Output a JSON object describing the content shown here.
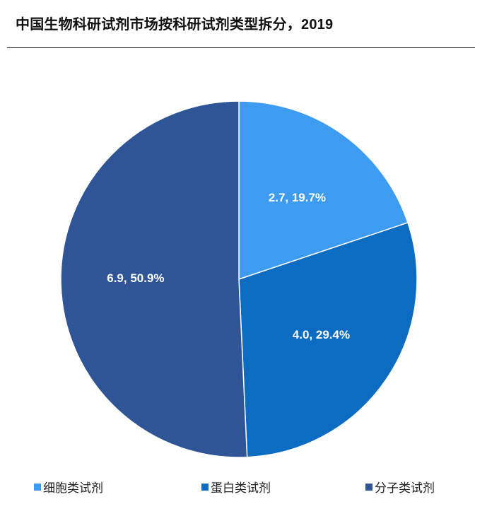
{
  "title": "中国生物科研试剂市场按科研试剂类型拆分，2019",
  "chart_data": {
    "type": "pie",
    "labels": [
      "细胞类试剂",
      "蛋白类试剂",
      "分子类试剂"
    ],
    "values": [
      2.7,
      4.0,
      6.9
    ],
    "percents": [
      "19.7%",
      "29.4%",
      "50.9%"
    ],
    "data_labels": [
      "2.7, 19.7%",
      "4.0, 29.4%",
      "6.9, 50.9%"
    ],
    "colors": [
      "#3d9bf0",
      "#0b6cc2",
      "#2f5597"
    ],
    "legend": "bottom"
  }
}
